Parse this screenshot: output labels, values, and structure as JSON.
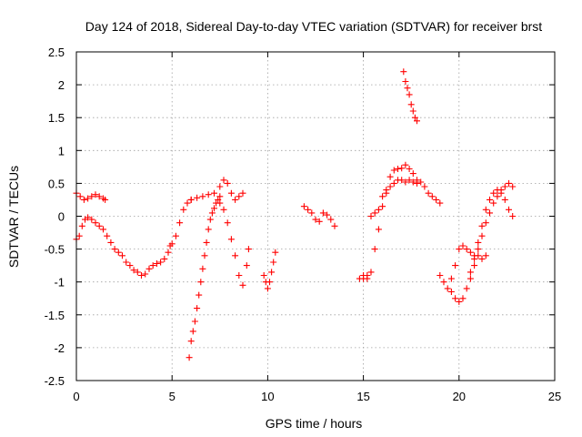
{
  "chart_data": {
    "type": "scatter",
    "title": "Day 124 of 2018, Sidereal Day-to-day VTEC variation (SDTVAR) for receiver brst",
    "xlabel": "GPS time / hours",
    "ylabel": "SDTVAR / TECUs",
    "xlim": [
      0,
      25
    ],
    "ylim": [
      -2.5,
      2.5
    ],
    "xticks": [
      0,
      5,
      10,
      15,
      20,
      25
    ],
    "yticks": [
      -2.5,
      -2,
      -1.5,
      -1,
      -0.5,
      0,
      0.5,
      1,
      1.5,
      2,
      2.5
    ],
    "grid": true,
    "marker": "+",
    "color": "#ff0000",
    "series": [
      {
        "name": "segment-0-1.5-high",
        "x": [
          0.0,
          0.2,
          0.4,
          0.6,
          0.8,
          1.0,
          1.2,
          1.4,
          1.5
        ],
        "y": [
          0.35,
          0.3,
          0.25,
          0.27,
          0.3,
          0.33,
          0.3,
          0.27,
          0.25
        ]
      },
      {
        "name": "segment-0-5-low",
        "x": [
          0.0,
          0.15,
          0.3,
          0.45,
          0.6,
          0.8,
          1.0,
          1.2,
          1.4,
          1.6,
          1.8,
          2.0,
          2.2,
          2.4,
          2.6,
          2.8,
          3.0,
          3.2,
          3.4,
          3.6,
          3.8,
          4.0,
          4.2,
          4.4,
          4.6,
          4.8
        ],
        "y": [
          -0.35,
          -0.3,
          -0.15,
          -0.05,
          -0.02,
          -0.05,
          -0.1,
          -0.15,
          -0.2,
          -0.3,
          -0.4,
          -0.5,
          -0.55,
          -0.6,
          -0.7,
          -0.75,
          -0.82,
          -0.85,
          -0.9,
          -0.88,
          -0.8,
          -0.75,
          -0.72,
          -0.7,
          -0.65,
          -0.55
        ]
      },
      {
        "name": "segment-5-6",
        "x": [
          4.9,
          5.0,
          5.2,
          5.4,
          5.6,
          5.8,
          6.0
        ],
        "y": [
          -0.45,
          -0.42,
          -0.3,
          -0.1,
          0.1,
          0.2,
          0.25
        ]
      },
      {
        "name": "segment-6-9-high",
        "x": [
          6.0,
          6.3,
          6.6,
          6.9,
          7.2,
          7.5,
          7.7,
          7.9,
          8.1,
          8.3,
          8.5,
          8.7
        ],
        "y": [
          0.25,
          0.28,
          0.3,
          0.33,
          0.35,
          0.45,
          0.55,
          0.5,
          0.35,
          0.25,
          0.3,
          0.35
        ]
      },
      {
        "name": "segment-6-7.5-dip",
        "x": [
          5.9,
          6.0,
          6.1,
          6.2,
          6.3,
          6.4,
          6.5,
          6.6,
          6.7,
          6.8,
          6.9,
          7.0,
          7.1,
          7.2,
          7.3,
          7.4,
          7.5
        ],
        "y": [
          -2.15,
          -1.9,
          -1.75,
          -1.6,
          -1.4,
          -1.2,
          -1.0,
          -0.8,
          -0.6,
          -0.4,
          -0.2,
          -0.05,
          0.05,
          0.12,
          0.2,
          0.25,
          0.3
        ]
      },
      {
        "name": "segment-7.5-9-dip",
        "x": [
          7.5,
          7.7,
          7.9,
          8.1,
          8.3,
          8.5,
          8.7,
          8.9,
          9.0
        ],
        "y": [
          0.2,
          0.1,
          -0.1,
          -0.35,
          -0.6,
          -0.9,
          -1.05,
          -0.75,
          -0.5
        ]
      },
      {
        "name": "segment-10",
        "x": [
          9.8,
          9.9,
          10.0,
          10.1,
          10.2,
          10.3,
          10.4
        ],
        "y": [
          -0.9,
          -1.0,
          -1.1,
          -1.0,
          -0.85,
          -0.7,
          -0.55
        ]
      },
      {
        "name": "segment-12-13.5",
        "x": [
          11.9,
          12.1,
          12.3,
          12.5,
          12.7,
          12.9,
          13.1,
          13.3,
          13.5
        ],
        "y": [
          0.15,
          0.1,
          0.05,
          -0.05,
          -0.08,
          0.05,
          0.02,
          -0.05,
          -0.15
        ]
      },
      {
        "name": "segment-14.8-19-high",
        "x": [
          14.8,
          15.0,
          15.2,
          15.4,
          15.6,
          15.8,
          16.0,
          16.2,
          16.4,
          16.6,
          16.8,
          17.0,
          17.2,
          17.4,
          17.6,
          17.8,
          18.0,
          18.2,
          18.4,
          18.6,
          18.8,
          19.0
        ],
        "y": [
          -0.95,
          -0.9,
          -0.95,
          -0.85,
          -0.5,
          -0.2,
          0.15,
          0.4,
          0.6,
          0.7,
          0.72,
          0.73,
          0.78,
          0.72,
          0.65,
          0.55,
          0.52,
          0.45,
          0.35,
          0.3,
          0.25,
          0.2
        ]
      },
      {
        "name": "segment-15-17.8-mid",
        "x": [
          15.0,
          15.2,
          15.4,
          15.6,
          15.8,
          16.0,
          16.2,
          16.4,
          16.6,
          16.8,
          17.0,
          17.2,
          17.4,
          17.6,
          17.8
        ],
        "y": [
          -0.95,
          -0.9,
          0.0,
          0.05,
          0.1,
          0.3,
          0.35,
          0.45,
          0.5,
          0.55,
          0.55,
          0.52,
          0.55,
          0.52,
          0.5
        ]
      },
      {
        "name": "segment-17-17.8-spike",
        "x": [
          17.1,
          17.2,
          17.3,
          17.4,
          17.5,
          17.6,
          17.7,
          17.8
        ],
        "y": [
          2.2,
          2.05,
          1.95,
          1.85,
          1.7,
          1.6,
          1.5,
          1.45
        ]
      },
      {
        "name": "segment-19-21.5",
        "x": [
          19.0,
          19.2,
          19.4,
          19.6,
          19.8,
          20.0,
          20.2,
          20.4,
          20.6,
          20.8,
          21.0,
          21.2,
          21.4
        ],
        "y": [
          -0.9,
          -1.0,
          -1.1,
          -0.95,
          -0.75,
          -0.5,
          -0.45,
          -0.5,
          -0.55,
          -0.6,
          -0.6,
          -0.65,
          -0.6
        ]
      },
      {
        "name": "segment-19.5-22.8-rise-a",
        "x": [
          19.6,
          19.8,
          20.0,
          20.2,
          20.4,
          20.6,
          20.8,
          21.0,
          21.2,
          21.4,
          21.6,
          21.8,
          22.0,
          22.2,
          22.4,
          22.6,
          22.8
        ],
        "y": [
          -1.15,
          -1.25,
          -1.3,
          -1.25,
          -1.1,
          -0.95,
          -0.75,
          -0.5,
          -0.3,
          -0.1,
          0.05,
          0.2,
          0.3,
          0.4,
          0.45,
          0.5,
          0.45
        ]
      },
      {
        "name": "segment-20.5-22.8-rise-b",
        "x": [
          20.6,
          20.8,
          21.0,
          21.2,
          21.4,
          21.6,
          21.8,
          22.0,
          22.2,
          22.4,
          22.6,
          22.8
        ],
        "y": [
          -0.85,
          -0.65,
          -0.4,
          -0.15,
          0.1,
          0.25,
          0.35,
          0.4,
          0.35,
          0.25,
          0.1,
          0.0
        ]
      }
    ]
  }
}
